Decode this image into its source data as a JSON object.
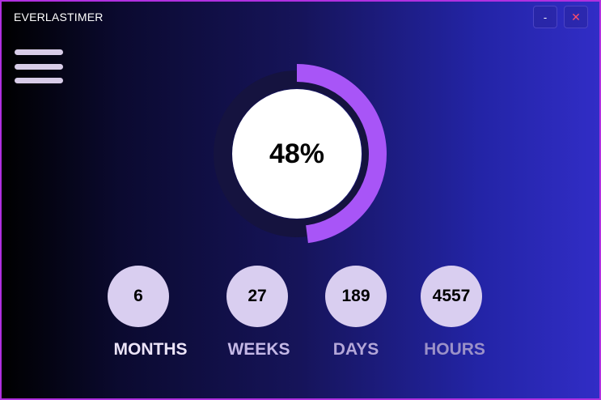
{
  "app": {
    "title": "EVERLASTIMER"
  },
  "window_controls": {
    "minimize_label": "-",
    "close_label": "✕"
  },
  "menu": {
    "icon": "hamburger-menu-icon"
  },
  "progress": {
    "value": 0.48,
    "label": "48%"
  },
  "stats": [
    {
      "value": "6",
      "unit": "MONTHS"
    },
    {
      "value": "27",
      "unit": "WEEKS"
    },
    {
      "value": "189",
      "unit": "DAYS"
    },
    {
      "value": "4557",
      "unit": "HOURS"
    }
  ],
  "colors": {
    "arc": "#a855f7",
    "track": "#15133f",
    "stat_circle": "#d9cef0",
    "unit_months": "#ece4f8",
    "unit_weeks": "#c4b8e6",
    "unit_days": "#b3a6d8",
    "unit_hours": "#9b91c8"
  }
}
